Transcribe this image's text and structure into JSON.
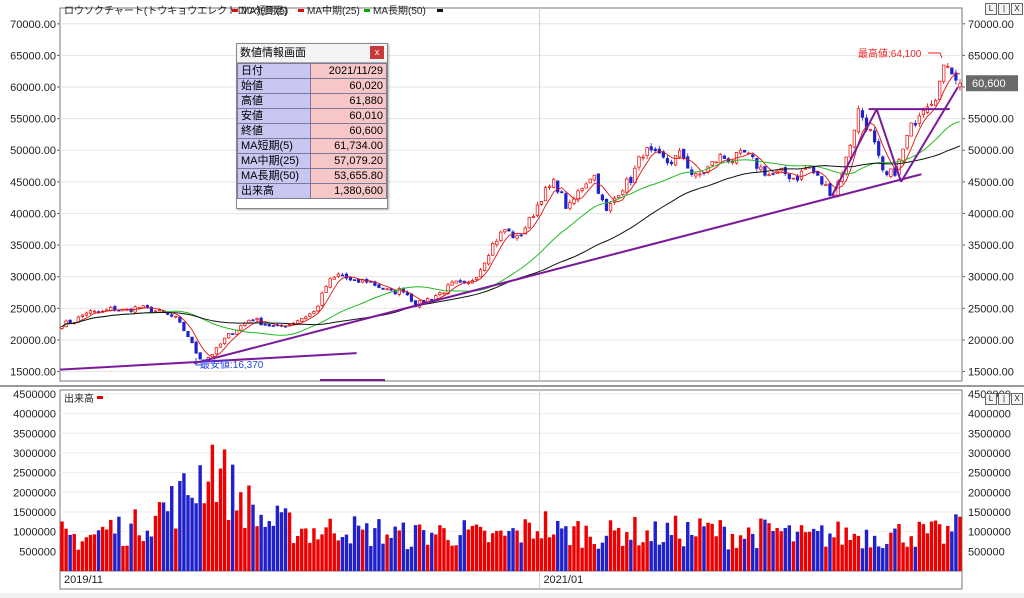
{
  "header": {
    "title": "ロウソクチャート(トウキョウエレクトロン)(日足)",
    "legend": [
      {
        "label": "MA短期(5)",
        "color": "#e01010"
      },
      {
        "label": "MA中期(25)",
        "color": "#e01010"
      },
      {
        "label": "MA長期(50)",
        "color": "#00aa00"
      }
    ]
  },
  "volume_panel": {
    "label": "出来高"
  },
  "corner_buttons": [
    "L",
    "|",
    "X"
  ],
  "info_box": {
    "title": "数値情報画面",
    "close": "x",
    "rows": [
      {
        "key": "日付",
        "value": "2021/11/29"
      },
      {
        "key": "始値",
        "value": "60,020"
      },
      {
        "key": "高値",
        "value": "61,880"
      },
      {
        "key": "安値",
        "value": "60,010"
      },
      {
        "key": "終値",
        "value": "60,600"
      },
      {
        "key": "MA短期(5)",
        "value": "61,734.00"
      },
      {
        "key": "MA中期(25)",
        "value": "57,079.20"
      },
      {
        "key": "MA長期(50)",
        "value": "53,655.80"
      },
      {
        "key": "出来高",
        "value": "1,380,600"
      }
    ]
  },
  "annotations": {
    "high": "最高値:64,100",
    "low": "最安値:16,370",
    "last_price": "60,600"
  },
  "colors": {
    "up": "#ee0000",
    "down": "#2020cc",
    "ma_short": "#e01010",
    "ma_mid": "#22bb22",
    "ma_long": "#111111",
    "trendline": "#7a1a9a"
  },
  "chart_data": [
    {
      "type": "candlestick",
      "title": "ロウソクチャート(トウキョウエレクトロン)(日足)",
      "x_start": "2019/11",
      "x_end": "2021/11/29",
      "x_ticks": [
        "2019/11",
        "2021/01"
      ],
      "y_ticks": [
        15000,
        20000,
        25000,
        30000,
        35000,
        40000,
        45000,
        50000,
        55000,
        60000,
        65000,
        70000
      ],
      "ylim": [
        13500,
        72500
      ],
      "price_path": [
        22500,
        23000,
        24500,
        24200,
        25000,
        24600,
        25200,
        24800,
        24200,
        23400,
        20500,
        16370,
        18000,
        20500,
        22000,
        23500,
        22500,
        22000,
        22500,
        23500,
        24500,
        29000,
        30500,
        29000,
        29500,
        28500,
        27500,
        28000,
        25500,
        26500,
        27500,
        29000,
        28500,
        31000,
        35000,
        37500,
        36000,
        39000,
        43000,
        45000,
        40500,
        44000,
        46500,
        40000,
        43500,
        45500,
        50000,
        49000,
        48000,
        49500,
        45500,
        47000,
        49000,
        48500,
        49500,
        47500,
        46000,
        46500,
        45500,
        47500,
        45000,
        43000,
        48500,
        56500,
        52500,
        45500,
        47000,
        53000,
        57000,
        58500,
        64100,
        60600
      ],
      "last_close": 60600,
      "high": 64100,
      "low": 16370,
      "ma_periods": [
        5,
        25,
        50
      ]
    },
    {
      "type": "bar",
      "title": "出来高",
      "y_ticks": [
        500000,
        1000000,
        1500000,
        2000000,
        2500000,
        3000000,
        3500000,
        4000000,
        4500000
      ],
      "ylim": [
        0,
        4600000
      ],
      "volume_envelope": [
        1000000,
        900000,
        1000000,
        1200000,
        1100000,
        1400000,
        1700000,
        1900000,
        2400000,
        3100000,
        2300000,
        1900000,
        1400000,
        1300000,
        1200000,
        1100000,
        1100000,
        1300000,
        1000000,
        1100000,
        1000000,
        950000,
        1050000,
        1050000,
        1050000,
        950000,
        900000,
        1000000,
        1100000,
        1300000,
        1000000,
        1100000,
        1000000,
        1000000,
        1150000,
        1000000,
        1000000,
        1100000,
        1050000,
        1150000,
        1000000,
        1000000,
        1050000,
        1100000,
        950000,
        900000,
        1000000,
        1000000,
        1000000,
        1000000,
        1000000,
        1050000,
        1000000,
        1000000,
        1150000
      ],
      "last_value": 1380600
    }
  ]
}
